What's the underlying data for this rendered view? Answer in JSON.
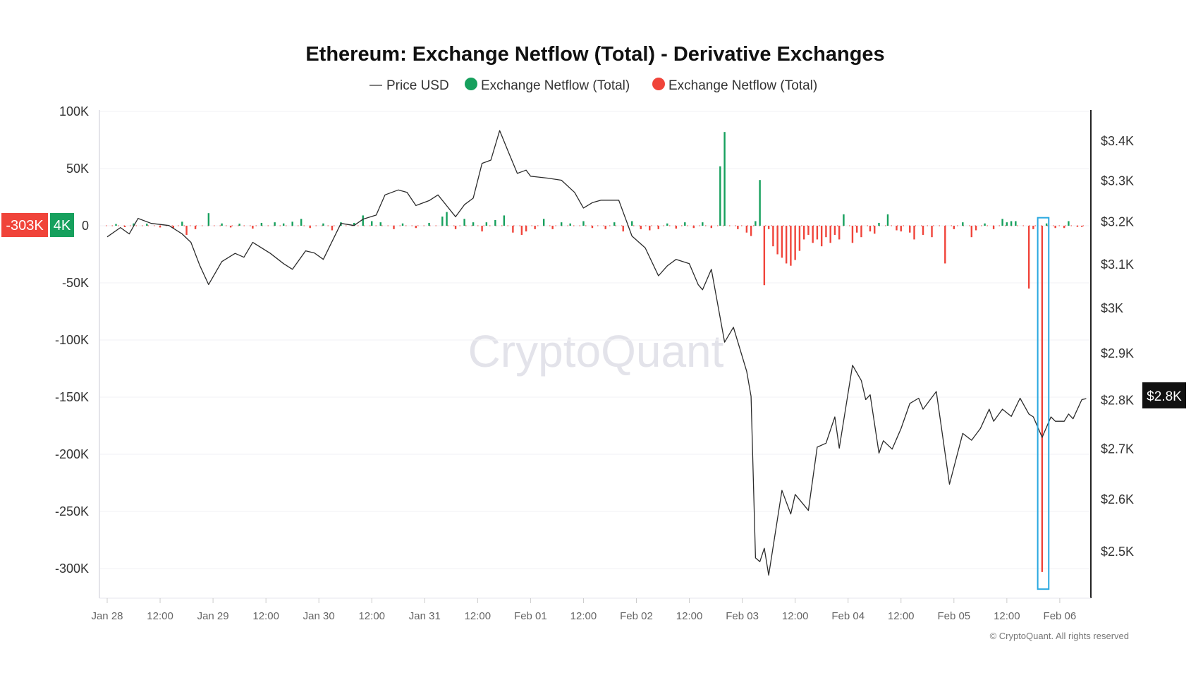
{
  "chart_data": {
    "type": "bar+line",
    "title": "Ethereum: Exchange Netflow (Total) - Derivative Exchanges",
    "legend": [
      {
        "name": "Price USD",
        "color": "#555555",
        "marker": "line"
      },
      {
        "name": "Exchange Netflow (Total)",
        "color": "#16a05d",
        "marker": "dot"
      },
      {
        "name": "Exchange Netflow (Total)",
        "color": "#f0443a",
        "marker": "dot"
      }
    ],
    "legend_placement": "top-center",
    "x_ticks": [
      "Jan 28",
      "12:00",
      "Jan 29",
      "12:00",
      "Jan 30",
      "12:00",
      "Jan 31",
      "12:00",
      "Feb 01",
      "12:00",
      "Feb 02",
      "12:00",
      "Feb 03",
      "12:00",
      "Feb 04",
      "12:00",
      "Feb 05",
      "12:00",
      "Feb 06"
    ],
    "x_range": [
      "Jan 28 00:00",
      "Feb 06 06:00"
    ],
    "y_left": {
      "ticks": [
        "100K",
        "50K",
        "0",
        "-50K",
        "-100K",
        "-150K",
        "-200K",
        "-250K",
        "-300K"
      ],
      "tick_values": [
        100000,
        50000,
        0,
        -50000,
        -100000,
        -150000,
        -200000,
        -250000,
        -300000
      ],
      "range": [
        -325000,
        100000
      ]
    },
    "y_right": {
      "scale": "log",
      "ticks": [
        "$3.4K",
        "$3.3K",
        "$3.2K",
        "$3.1K",
        "$3K",
        "$2.9K",
        "$2.8K",
        "$2.7K",
        "$2.6K",
        "$2.5K"
      ],
      "tick_values": [
        3400,
        3300,
        3200,
        3100,
        3000,
        2900,
        2800,
        2700,
        2600,
        2500
      ]
    },
    "grid": true,
    "colors": {
      "positive": "#16a05d",
      "negative": "#f0443a",
      "price": "#2b2b2b",
      "highlight": "#29a8e0"
    },
    "price_series": [
      [
        "Jan 28 00:00",
        3163
      ],
      [
        "Jan 28 03:00",
        3185
      ],
      [
        "Jan 28 05:00",
        3170
      ],
      [
        "Jan 28 07:00",
        3207
      ],
      [
        "Jan 28 10:00",
        3195
      ],
      [
        "Jan 28 14:00",
        3190
      ],
      [
        "Jan 28 17:00",
        3170
      ],
      [
        "Jan 28 19:00",
        3150
      ],
      [
        "Jan 28 21:00",
        3096
      ],
      [
        "Jan 28 23:00",
        3052
      ],
      [
        "Jan 29 02:00",
        3105
      ],
      [
        "Jan 29 05:00",
        3124
      ],
      [
        "Jan 29 07:00",
        3115
      ],
      [
        "Jan 29 09:00",
        3150
      ],
      [
        "Jan 29 13:00",
        3124
      ],
      [
        "Jan 29 16:00",
        3100
      ],
      [
        "Jan 29 18:00",
        3087
      ],
      [
        "Jan 29 21:00",
        3130
      ],
      [
        "Jan 29 23:00",
        3125
      ],
      [
        "Jan 30 01:00",
        3110
      ],
      [
        "Jan 30 05:00",
        3195
      ],
      [
        "Jan 30 08:00",
        3190
      ],
      [
        "Jan 30 10:00",
        3205
      ],
      [
        "Jan 30 13:00",
        3215
      ],
      [
        "Jan 30 15:00",
        3264
      ],
      [
        "Jan 30 18:00",
        3276
      ],
      [
        "Jan 30 20:00",
        3270
      ],
      [
        "Jan 30 22:00",
        3238
      ],
      [
        "Jan 31 01:00",
        3250
      ],
      [
        "Jan 31 03:00",
        3264
      ],
      [
        "Jan 31 07:00",
        3211
      ],
      [
        "Jan 31 09:00",
        3240
      ],
      [
        "Jan 31 11:00",
        3256
      ],
      [
        "Jan 31 13:00",
        3342
      ],
      [
        "Jan 31 15:00",
        3350
      ],
      [
        "Jan 31 17:00",
        3425
      ],
      [
        "Jan 31 19:00",
        3370
      ],
      [
        "Jan 31 21:00",
        3317
      ],
      [
        "Jan 31 23:00",
        3325
      ],
      [
        "Feb 01 00:00",
        3310
      ],
      [
        "Feb 01 04:00",
        3305
      ],
      [
        "Feb 01 07:00",
        3300
      ],
      [
        "Feb 01 10:00",
        3270
      ],
      [
        "Feb 01 12:00",
        3232
      ],
      [
        "Feb 01 14:00",
        3245
      ],
      [
        "Feb 01 16:00",
        3251
      ],
      [
        "Feb 01 20:00",
        3251
      ],
      [
        "Feb 01 23:00",
        3165
      ],
      [
        "Feb 02 02:00",
        3137
      ],
      [
        "Feb 02 05:00",
        3072
      ],
      [
        "Feb 02 07:00",
        3095
      ],
      [
        "Feb 02 09:00",
        3110
      ],
      [
        "Feb 02 12:00",
        3100
      ],
      [
        "Feb 02 14:00",
        3052
      ],
      [
        "Feb 02 15:00",
        3040
      ],
      [
        "Feb 02 17:00",
        3087
      ],
      [
        "Feb 02 20:00",
        2923
      ],
      [
        "Feb 02 22:00",
        2956
      ],
      [
        "Feb 03 01:00",
        2860
      ],
      [
        "Feb 03 02:00",
        2807
      ],
      [
        "Feb 03 03:00",
        2487
      ],
      [
        "Feb 03 04:00",
        2480
      ],
      [
        "Feb 03 05:00",
        2505
      ],
      [
        "Feb 03 06:00",
        2455
      ],
      [
        "Feb 03 09:00",
        2616
      ],
      [
        "Feb 03 11:00",
        2570
      ],
      [
        "Feb 03 12:00",
        2608
      ],
      [
        "Feb 03 15:00",
        2577
      ],
      [
        "Feb 03 17:00",
        2702
      ],
      [
        "Feb 03 19:00",
        2710
      ],
      [
        "Feb 03 21:00",
        2764
      ],
      [
        "Feb 03 22:00",
        2700
      ],
      [
        "Feb 04 01:00",
        2873
      ],
      [
        "Feb 04 03:00",
        2840
      ],
      [
        "Feb 04 04:00",
        2800
      ],
      [
        "Feb 04 05:00",
        2810
      ],
      [
        "Feb 04 07:00",
        2690
      ],
      [
        "Feb 04 08:00",
        2715
      ],
      [
        "Feb 04 10:00",
        2698
      ],
      [
        "Feb 04 12:00",
        2740
      ],
      [
        "Feb 04 14:00",
        2792
      ],
      [
        "Feb 04 16:00",
        2803
      ],
      [
        "Feb 04 17:00",
        2780
      ],
      [
        "Feb 04 20:00",
        2817
      ],
      [
        "Feb 04 23:00",
        2628
      ],
      [
        "Feb 05 02:00",
        2730
      ],
      [
        "Feb 05 04:00",
        2716
      ],
      [
        "Feb 05 06:00",
        2740
      ],
      [
        "Feb 05 08:00",
        2780
      ],
      [
        "Feb 05 09:00",
        2755
      ],
      [
        "Feb 05 11:00",
        2780
      ],
      [
        "Feb 05 13:00",
        2765
      ],
      [
        "Feb 05 15:00",
        2803
      ],
      [
        "Feb 05 17:00",
        2770
      ],
      [
        "Feb 05 18:00",
        2764
      ],
      [
        "Feb 05 20:00",
        2722
      ],
      [
        "Feb 05 22:00",
        2764
      ],
      [
        "Feb 05 23:00",
        2755
      ],
      [
        "Feb 06 01:00",
        2755
      ],
      [
        "Feb 06 02:00",
        2770
      ],
      [
        "Feb 06 03:00",
        2760
      ],
      [
        "Feb 06 05:00",
        2800
      ],
      [
        "Feb 06 06:00",
        2802
      ]
    ],
    "netflow_series": [
      [
        "Jan 28 02:00",
        1500
      ],
      [
        "Jan 28 04:00",
        -1200
      ],
      [
        "Jan 28 06:00",
        2000
      ],
      [
        "Jan 28 09:00",
        1800
      ],
      [
        "Jan 28 12:00",
        -1500
      ],
      [
        "Jan 28 15:00",
        -2000
      ],
      [
        "Jan 28 17:00",
        3500
      ],
      [
        "Jan 28 18:00",
        -8000
      ],
      [
        "Jan 28 20:00",
        -3000
      ],
      [
        "Jan 28 23:00",
        11000
      ],
      [
        "Jan 29 02:00",
        2000
      ],
      [
        "Jan 29 04:00",
        -1500
      ],
      [
        "Jan 29 06:00",
        1800
      ],
      [
        "Jan 29 09:00",
        -2500
      ],
      [
        "Jan 29 11:00",
        2500
      ],
      [
        "Jan 29 14:00",
        3000
      ],
      [
        "Jan 29 16:00",
        2000
      ],
      [
        "Jan 29 18:00",
        3500
      ],
      [
        "Jan 29 20:00",
        6000
      ],
      [
        "Jan 29 22:00",
        -2000
      ],
      [
        "Jan 30 01:00",
        2000
      ],
      [
        "Jan 30 03:00",
        -4000
      ],
      [
        "Jan 30 05:00",
        3000
      ],
      [
        "Jan 30 08:00",
        2500
      ],
      [
        "Jan 30 10:00",
        9000
      ],
      [
        "Jan 30 12:00",
        4000
      ],
      [
        "Jan 30 14:00",
        3000
      ],
      [
        "Jan 30 17:00",
        -3000
      ],
      [
        "Jan 30 19:00",
        2000
      ],
      [
        "Jan 30 22:00",
        -2000
      ],
      [
        "Jan 31 01:00",
        2500
      ],
      [
        "Jan 31 04:00",
        8000
      ],
      [
        "Jan 31 05:00",
        12000
      ],
      [
        "Jan 31 07:00",
        -3000
      ],
      [
        "Jan 31 09:00",
        6000
      ],
      [
        "Jan 31 11:00",
        3000
      ],
      [
        "Jan 31 13:00",
        -5000
      ],
      [
        "Jan 31 14:00",
        3000
      ],
      [
        "Jan 31 16:00",
        5000
      ],
      [
        "Jan 31 18:00",
        9000
      ],
      [
        "Jan 31 20:00",
        -6000
      ],
      [
        "Jan 31 22:00",
        -8000
      ],
      [
        "Jan 31 23:00",
        -5000
      ],
      [
        "Feb 01 01:00",
        -3000
      ],
      [
        "Feb 01 03:00",
        6000
      ],
      [
        "Feb 01 05:00",
        -3000
      ],
      [
        "Feb 01 07:00",
        3000
      ],
      [
        "Feb 01 09:00",
        2000
      ],
      [
        "Feb 01 12:00",
        4000
      ],
      [
        "Feb 01 14:00",
        -2000
      ],
      [
        "Feb 01 17:00",
        -3000
      ],
      [
        "Feb 01 19:00",
        3000
      ],
      [
        "Feb 01 21:00",
        -5000
      ],
      [
        "Feb 01 23:00",
        4000
      ],
      [
        "Feb 02 01:00",
        -3000
      ],
      [
        "Feb 02 03:00",
        -4000
      ],
      [
        "Feb 02 05:00",
        -3000
      ],
      [
        "Feb 02 07:00",
        2000
      ],
      [
        "Feb 02 09:00",
        -2500
      ],
      [
        "Feb 02 11:00",
        3000
      ],
      [
        "Feb 02 13:00",
        -2000
      ],
      [
        "Feb 02 15:00",
        3000
      ],
      [
        "Feb 02 17:00",
        -2000
      ],
      [
        "Feb 02 19:00",
        52000
      ],
      [
        "Feb 02 20:00",
        82000
      ],
      [
        "Feb 02 23:00",
        -3000
      ],
      [
        "Feb 03 01:00",
        -6000
      ],
      [
        "Feb 03 02:00",
        -9000
      ],
      [
        "Feb 03 03:00",
        4000
      ],
      [
        "Feb 03 04:00",
        40000
      ],
      [
        "Feb 03 05:00",
        -52000
      ],
      [
        "Feb 03 06:00",
        -3000
      ],
      [
        "Feb 03 07:00",
        -18000
      ],
      [
        "Feb 03 08:00",
        -25000
      ],
      [
        "Feb 03 09:00",
        -28000
      ],
      [
        "Feb 03 10:00",
        -33000
      ],
      [
        "Feb 03 11:00",
        -35000
      ],
      [
        "Feb 03 12:00",
        -30000
      ],
      [
        "Feb 03 13:00",
        -22000
      ],
      [
        "Feb 03 14:00",
        -12000
      ],
      [
        "Feb 03 15:00",
        -8000
      ],
      [
        "Feb 03 16:00",
        -15000
      ],
      [
        "Feb 03 17:00",
        -12000
      ],
      [
        "Feb 03 18:00",
        -18000
      ],
      [
        "Feb 03 19:00",
        -10000
      ],
      [
        "Feb 03 20:00",
        -15000
      ],
      [
        "Feb 03 21:00",
        -8000
      ],
      [
        "Feb 03 22:00",
        -12000
      ],
      [
        "Feb 03 23:00",
        10000
      ],
      [
        "Feb 04 01:00",
        -15000
      ],
      [
        "Feb 04 02:00",
        -6000
      ],
      [
        "Feb 04 03:00",
        -10000
      ],
      [
        "Feb 04 05:00",
        -5000
      ],
      [
        "Feb 04 06:00",
        -7000
      ],
      [
        "Feb 04 07:00",
        2500
      ],
      [
        "Feb 04 09:00",
        10000
      ],
      [
        "Feb 04 11:00",
        -4000
      ],
      [
        "Feb 04 12:00",
        -5000
      ],
      [
        "Feb 04 14:00",
        -6000
      ],
      [
        "Feb 04 15:00",
        -12000
      ],
      [
        "Feb 04 17:00",
        -8000
      ],
      [
        "Feb 04 19:00",
        -10000
      ],
      [
        "Feb 04 22:00",
        -33000
      ],
      [
        "Feb 05 00:00",
        -3000
      ],
      [
        "Feb 05 02:00",
        3000
      ],
      [
        "Feb 05 04:00",
        -10000
      ],
      [
        "Feb 05 05:00",
        -4000
      ],
      [
        "Feb 05 07:00",
        2000
      ],
      [
        "Feb 05 09:00",
        -3000
      ],
      [
        "Feb 05 11:00",
        6000
      ],
      [
        "Feb 05 12:00",
        3000
      ],
      [
        "Feb 05 13:00",
        4000
      ],
      [
        "Feb 05 14:00",
        4000
      ],
      [
        "Feb 05 17:00",
        -55000
      ],
      [
        "Feb 05 18:00",
        -3000
      ],
      [
        "Feb 05 20:00",
        -303000
      ],
      [
        "Feb 05 21:00",
        2000
      ],
      [
        "Feb 05 23:00",
        -2000
      ],
      [
        "Feb 06 01:00",
        -2000
      ],
      [
        "Feb 06 02:00",
        4000
      ],
      [
        "Feb 06 04:00",
        -1000
      ],
      [
        "Feb 06 05:00",
        -1000
      ]
    ],
    "highlight": {
      "x_range": [
        "Feb 05 19:00",
        "Feb 05 21:30"
      ],
      "y_range": [
        -318000,
        7000
      ],
      "color": "#29a8e0"
    },
    "crosshair": {
      "left_value_label": "-303K",
      "left_value_label_2": "4K",
      "right_value_label": "$2.8K",
      "left_value": 4000
    }
  },
  "watermark": "CryptoQuant",
  "copyright": "© CryptoQuant. All rights reserved"
}
